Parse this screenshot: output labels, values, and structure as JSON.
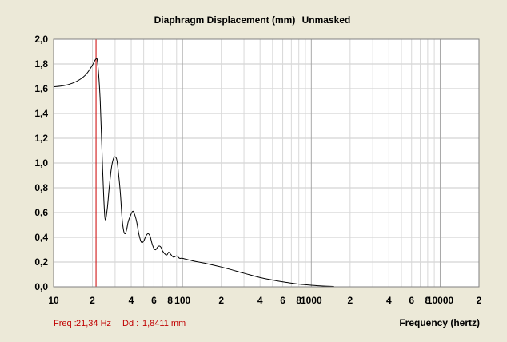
{
  "chart_data": {
    "type": "line",
    "title": "Diaphragm Displacement (mm)",
    "subtitle": "Unmasked",
    "xlabel": "Frequency (hertz)",
    "ylabel": "",
    "xscale": "log",
    "xlim": [
      10,
      20000
    ],
    "ylim": [
      0,
      2.0
    ],
    "grid": true,
    "legend": "none",
    "y_ticks": [
      "0,0",
      "0,2",
      "0,4",
      "0,6",
      "0,8",
      "1,0",
      "1,2",
      "1,4",
      "1,6",
      "1,8",
      "2,0"
    ],
    "x_ticks": [
      {
        "value": 10,
        "label": "10"
      },
      {
        "value": 20,
        "label": "2"
      },
      {
        "value": 40,
        "label": "4"
      },
      {
        "value": 60,
        "label": "6"
      },
      {
        "value": 80,
        "label": "8"
      },
      {
        "value": 100,
        "label": "100"
      },
      {
        "value": 200,
        "label": "2"
      },
      {
        "value": 400,
        "label": "4"
      },
      {
        "value": 600,
        "label": "6"
      },
      {
        "value": 800,
        "label": "8"
      },
      {
        "value": 1000,
        "label": "1000"
      },
      {
        "value": 2000,
        "label": "2"
      },
      {
        "value": 4000,
        "label": "4"
      },
      {
        "value": 6000,
        "label": "6"
      },
      {
        "value": 8000,
        "label": "8"
      },
      {
        "value": 10000,
        "label": "10000"
      },
      {
        "value": 20000,
        "label": "2"
      }
    ],
    "series": [
      {
        "name": "",
        "color": "#000000",
        "points": [
          [
            10,
            1.615
          ],
          [
            12,
            1.625
          ],
          [
            14,
            1.645
          ],
          [
            16,
            1.675
          ],
          [
            18,
            1.72
          ],
          [
            20,
            1.79
          ],
          [
            21.34,
            1.841
          ],
          [
            22,
            1.8
          ],
          [
            23,
            1.5
          ],
          [
            24,
            0.95
          ],
          [
            25,
            0.56
          ],
          [
            26,
            0.62
          ],
          [
            27,
            0.8
          ],
          [
            28,
            0.95
          ],
          [
            29,
            1.03
          ],
          [
            30,
            1.05
          ],
          [
            31,
            1.02
          ],
          [
            32,
            0.9
          ],
          [
            33,
            0.75
          ],
          [
            34,
            0.55
          ],
          [
            35,
            0.45
          ],
          [
            36,
            0.43
          ],
          [
            37,
            0.47
          ],
          [
            38,
            0.53
          ],
          [
            40,
            0.59
          ],
          [
            41,
            0.61
          ],
          [
            42,
            0.6
          ],
          [
            44,
            0.53
          ],
          [
            46,
            0.42
          ],
          [
            48,
            0.36
          ],
          [
            50,
            0.37
          ],
          [
            52,
            0.41
          ],
          [
            54,
            0.43
          ],
          [
            56,
            0.41
          ],
          [
            58,
            0.35
          ],
          [
            60,
            0.31
          ],
          [
            62,
            0.3
          ],
          [
            64,
            0.32
          ],
          [
            66,
            0.33
          ],
          [
            68,
            0.32
          ],
          [
            70,
            0.29
          ],
          [
            74,
            0.26
          ],
          [
            76,
            0.26
          ],
          [
            78,
            0.28
          ],
          [
            80,
            0.27
          ],
          [
            85,
            0.24
          ],
          [
            90,
            0.25
          ],
          [
            95,
            0.23
          ],
          [
            100,
            0.23
          ],
          [
            120,
            0.21
          ],
          [
            150,
            0.19
          ],
          [
            200,
            0.16
          ],
          [
            300,
            0.11
          ],
          [
            400,
            0.075
          ],
          [
            500,
            0.055
          ],
          [
            600,
            0.04
          ],
          [
            700,
            0.03
          ],
          [
            800,
            0.022
          ],
          [
            1000,
            0.013
          ],
          [
            1200,
            0.007
          ],
          [
            1500,
            0.003
          ]
        ]
      }
    ],
    "marker": {
      "x": 21.34,
      "color": "#cc0000"
    },
    "readout": {
      "freq_label": "Freq :",
      "freq_value": "21,34 Hz",
      "dd_label": "Dd :",
      "dd_value": "1,8411 mm"
    }
  }
}
